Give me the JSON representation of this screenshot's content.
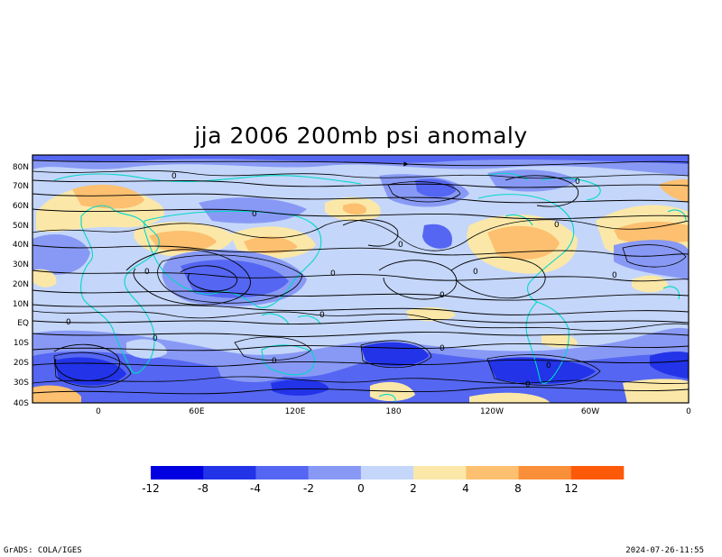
{
  "title": "jja 2006 200mb psi anomaly",
  "lat_labels": [
    "80N",
    "70N",
    "60N",
    "50N",
    "40N",
    "30N",
    "20N",
    "10N",
    "EQ",
    "10S",
    "20S",
    "30S",
    "40S"
  ],
  "lon_labels": [
    "0",
    "60E",
    "120E",
    "180",
    "120W",
    "60W",
    "0"
  ],
  "colorbar": {
    "colors": [
      "#0000e0",
      "#2233e8",
      "#5566f2",
      "#8899f5",
      "#c4d6fa",
      "#fbe8a8",
      "#fcc070",
      "#fa8f3a",
      "#fc5a08"
    ],
    "labels": [
      "-12",
      "-8",
      "-4",
      "-2",
      "0",
      "2",
      "4",
      "8",
      "12"
    ]
  },
  "contour_labels": [
    "0",
    "0",
    "0",
    "0",
    "0",
    "0",
    "0",
    "0",
    "0",
    "0",
    "0",
    "0",
    "0",
    "0",
    "0",
    "0",
    "0",
    "0",
    "0",
    "0",
    "0",
    "0",
    "0"
  ],
  "footer_left": "GrADS: COLA/IGES",
  "footer_right": "2024-07-26-11:55",
  "colors": {
    "background": "#ffffff",
    "coast": "#00d8c8",
    "stream": "#000000"
  }
}
